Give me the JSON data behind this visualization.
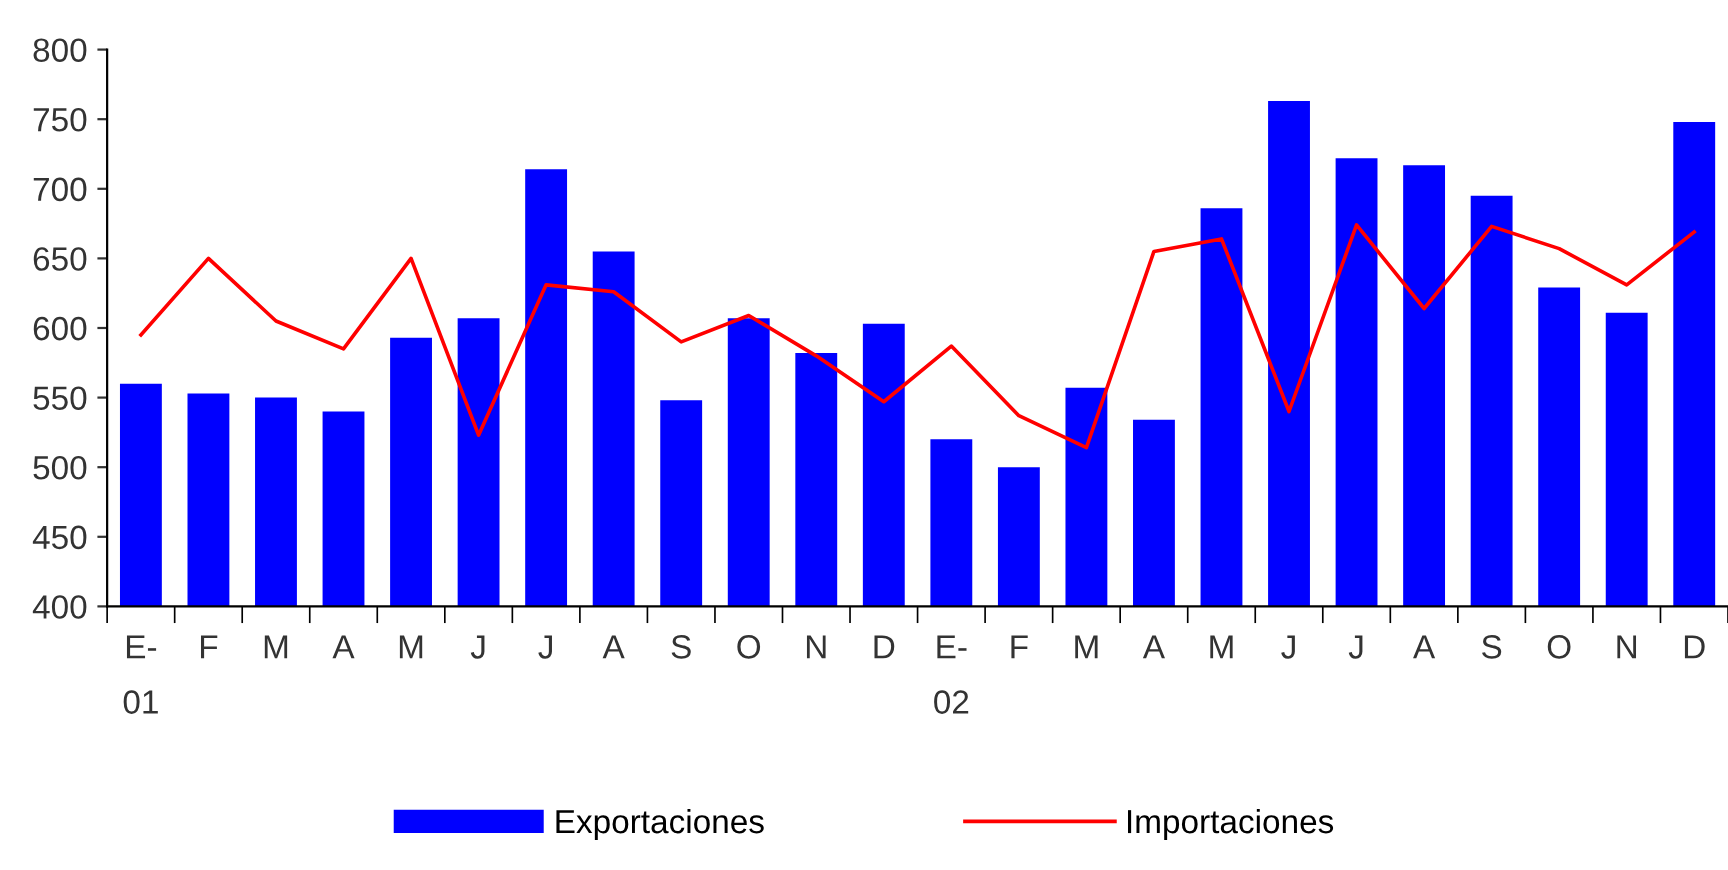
{
  "chart_data": {
    "type": "bar",
    "categories": [
      "E-\n01",
      "F",
      "M",
      "A",
      "M",
      "J",
      "J",
      "A",
      "S",
      "O",
      "N",
      "D",
      "E-\n02",
      "F",
      "M",
      "A",
      "M",
      "J",
      "J",
      "A",
      "S",
      "O",
      "N",
      "D"
    ],
    "series": [
      {
        "name": "Exportaciones",
        "color": "#0000ff",
        "values": [
          560,
          553,
          550,
          540,
          593,
          607,
          714,
          655,
          548,
          607,
          582,
          603,
          520,
          500,
          557,
          534,
          686,
          763,
          722,
          717,
          695,
          629,
          611,
          748
        ]
      },
      {
        "name": "Importaciones",
        "type": "line",
        "color": "#ff0000",
        "values": [
          595,
          650,
          605,
          585,
          650,
          523,
          631,
          626,
          590,
          609,
          580,
          547,
          587,
          537,
          514,
          655,
          664,
          540,
          674,
          614,
          673,
          657,
          631,
          669
        ]
      }
    ],
    "ylim": [
      400,
      800
    ],
    "yticks": [
      400,
      450,
      500,
      550,
      600,
      650,
      700,
      750,
      800
    ],
    "grid": false,
    "legend": "bottom",
    "marker": "none",
    "line_style": "solid"
  }
}
